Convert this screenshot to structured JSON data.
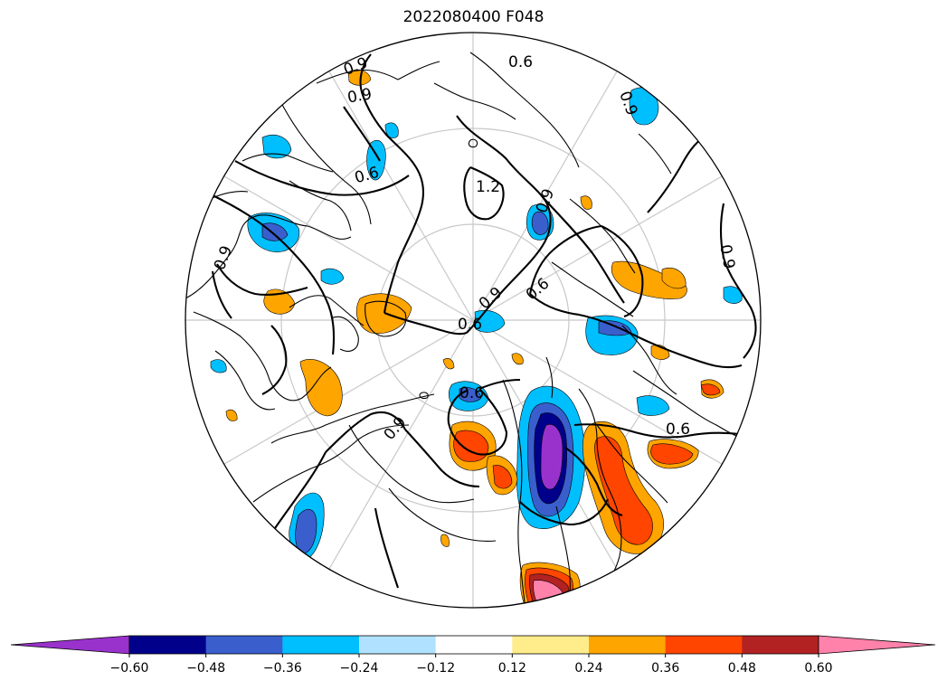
{
  "map": {
    "title": "2022080400 F048",
    "projection": "north-polar-stereographic",
    "contour_labels": [
      "0.6",
      "0.9",
      "0.9",
      "0.6",
      "1.2",
      "0.9",
      "0.9",
      "0.6",
      "0.9",
      "0.6",
      "0.6",
      "0.9",
      "0.6",
      "0.9",
      "0.9"
    ]
  },
  "colorbar": {
    "extend": "both",
    "ticks": [
      "−0.60",
      "−0.48",
      "−0.36",
      "−0.24",
      "−0.12",
      "0.12",
      "0.24",
      "0.36",
      "0.48",
      "0.60"
    ],
    "colors": [
      "#9932cc",
      "#00008b",
      "#3a5fcd",
      "#00bfff",
      "#b0e2ff",
      "#ffffff",
      "#ffec8b",
      "#ffa500",
      "#ff4500",
      "#b22222",
      "#ff82ab"
    ]
  }
}
